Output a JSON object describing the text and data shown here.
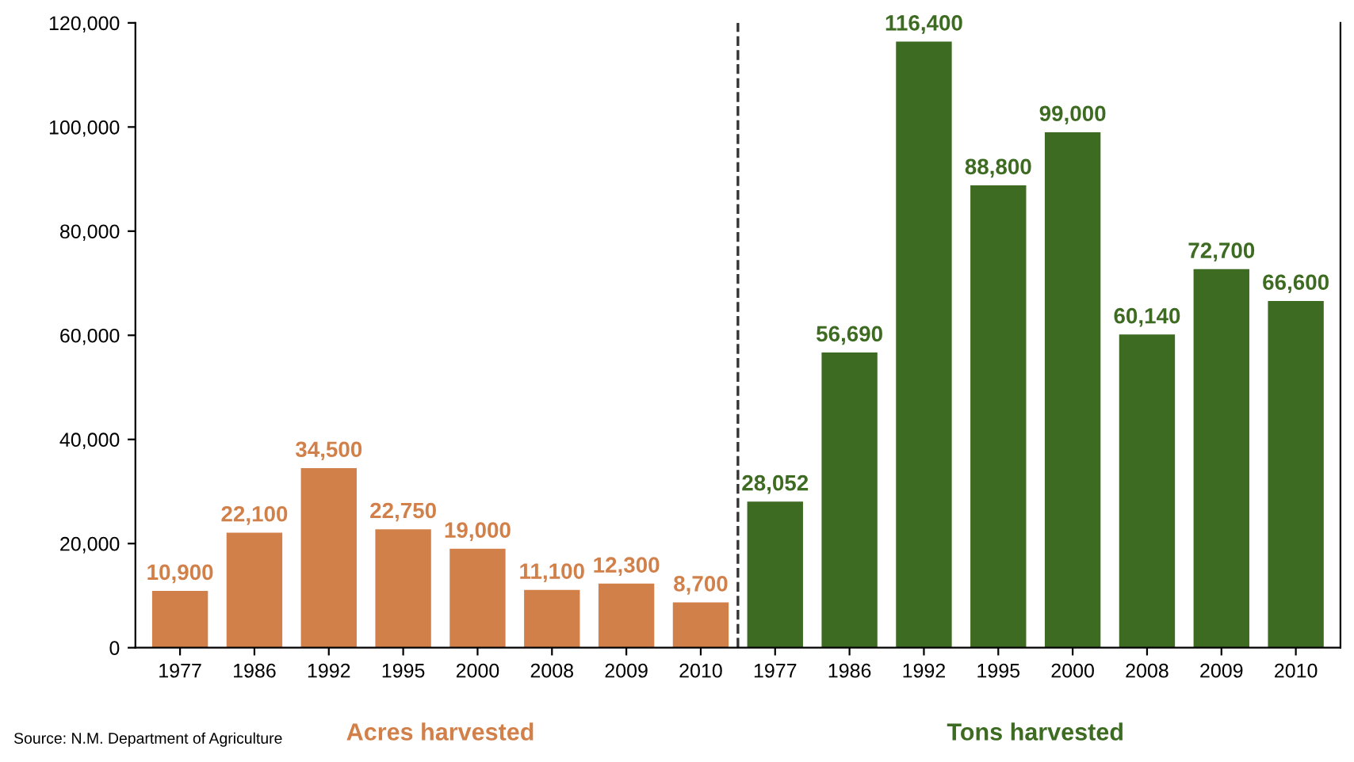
{
  "chart_data": {
    "type": "bar",
    "categories": [
      "1977",
      "1986",
      "1992",
      "1995",
      "2000",
      "2008",
      "2009",
      "2010",
      "1977",
      "1986",
      "1992",
      "1995",
      "2000",
      "2008",
      "2009",
      "2010"
    ],
    "series": [
      {
        "name": "Acres harvested",
        "color": "#d2804a",
        "values": [
          10900,
          22100,
          34500,
          22750,
          19000,
          11100,
          12300,
          8700,
          null,
          null,
          null,
          null,
          null,
          null,
          null,
          null
        ],
        "value_labels": [
          "10,900",
          "22,100",
          "34,500",
          "22,750",
          "19,000",
          "11,100",
          "12,300",
          "8,700",
          null,
          null,
          null,
          null,
          null,
          null,
          null,
          null
        ]
      },
      {
        "name": "Tons harvested",
        "color": "#3e6b22",
        "values": [
          null,
          null,
          null,
          null,
          null,
          null,
          null,
          null,
          28052,
          56690,
          116400,
          88800,
          99000,
          60140,
          72700,
          66600
        ],
        "value_labels": [
          null,
          null,
          null,
          null,
          null,
          null,
          null,
          null,
          "28,052",
          "56,690",
          "116,400",
          "88,800",
          "99,000",
          "60,140",
          "72,700",
          "66,600"
        ]
      }
    ],
    "ylim": [
      0,
      120000
    ],
    "yticks": [
      {
        "value": 0,
        "label": "0"
      },
      {
        "value": 20000,
        "label": "20,000"
      },
      {
        "value": 40000,
        "label": "40,000"
      },
      {
        "value": 60000,
        "label": "60,000"
      },
      {
        "value": 80000,
        "label": "80,000"
      },
      {
        "value": 100000,
        "label": "100,000"
      },
      {
        "value": 120000,
        "label": "120,000"
      }
    ],
    "annotations": [
      "Source: N.M. Department of Agriculture"
    ],
    "grid": false,
    "legend": false
  }
}
